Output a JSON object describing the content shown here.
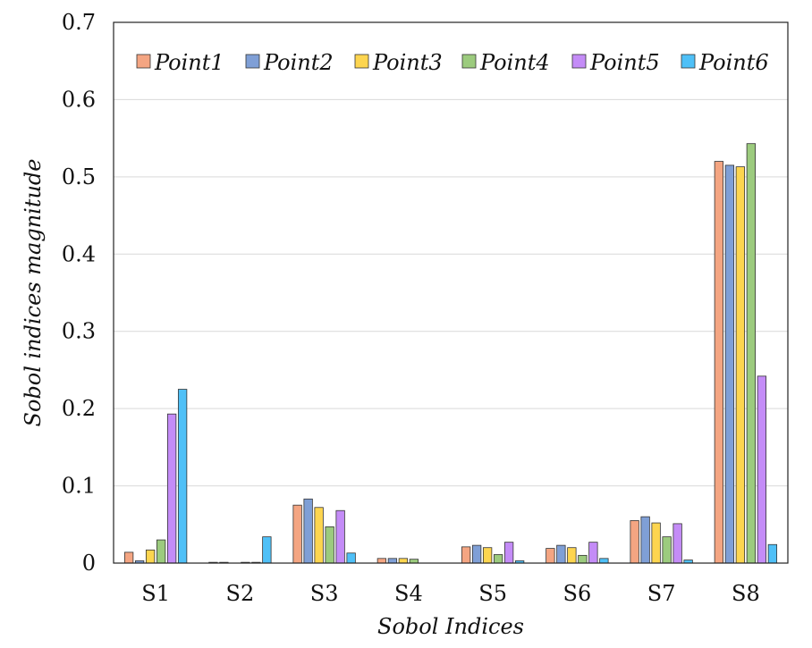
{
  "chart_data": {
    "type": "bar",
    "title": "",
    "xlabel": "Sobol Indices",
    "ylabel": "Sobol indices magnitude",
    "ylim": [
      0,
      0.7
    ],
    "yticks": [
      "0",
      "0.1",
      "0.2",
      "0.3",
      "0.4",
      "0.5",
      "0.6",
      "0.7"
    ],
    "grid": "horizontal",
    "legend_position": "top",
    "categories": [
      "S1",
      "S2",
      "S3",
      "S4",
      "S5",
      "S6",
      "S7",
      "S8"
    ],
    "series": [
      {
        "name": "Point1",
        "color": "#F4A582",
        "values": [
          0.014,
          0.001,
          0.075,
          0.006,
          0.021,
          0.019,
          0.055,
          0.52
        ]
      },
      {
        "name": "Point2",
        "color": "#7F9FD6",
        "values": [
          0.003,
          0.001,
          0.083,
          0.006,
          0.023,
          0.023,
          0.06,
          0.515
        ]
      },
      {
        "name": "Point3",
        "color": "#FDD54F",
        "values": [
          0.017,
          0.0,
          0.072,
          0.006,
          0.02,
          0.02,
          0.052,
          0.513
        ]
      },
      {
        "name": "Point4",
        "color": "#9CCB7E",
        "values": [
          0.03,
          0.001,
          0.047,
          0.005,
          0.011,
          0.01,
          0.034,
          0.543
        ]
      },
      {
        "name": "Point5",
        "color": "#C48CF7",
        "values": [
          0.193,
          0.001,
          0.068,
          0.0,
          0.027,
          0.027,
          0.051,
          0.242
        ]
      },
      {
        "name": "Point6",
        "color": "#4FC0F7",
        "values": [
          0.225,
          0.034,
          0.013,
          0.0,
          0.003,
          0.006,
          0.004,
          0.024
        ]
      }
    ]
  }
}
